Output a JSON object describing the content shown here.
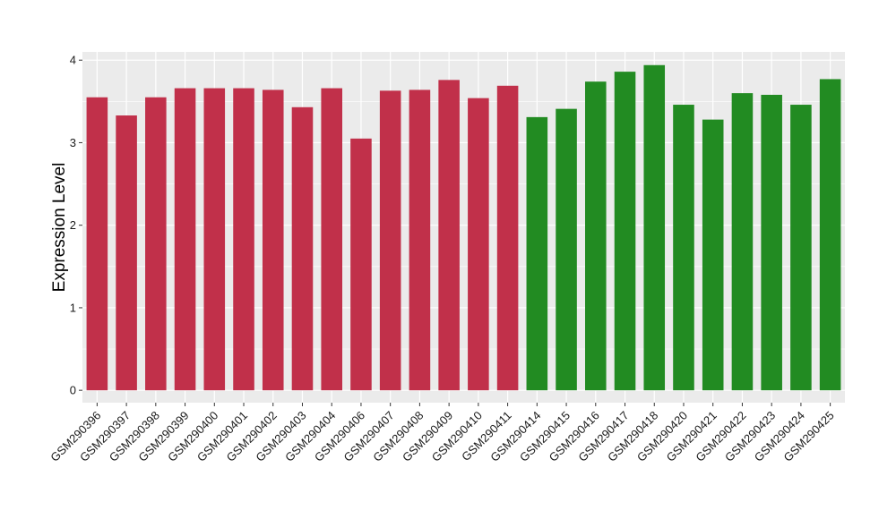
{
  "chart_data": {
    "type": "bar",
    "xlabel": "",
    "ylabel": "Expression Level",
    "ylim": [
      -0.15,
      4.1
    ],
    "yticks": [
      0,
      1,
      2,
      3,
      4
    ],
    "grid": true,
    "legend": "none",
    "colors": {
      "group1": "#C1304A",
      "group2": "#228B22",
      "panel": "#EBEBEB",
      "grid": "#FFFFFF"
    },
    "categories": [
      "GSM290396",
      "GSM290397",
      "GSM290398",
      "GSM290399",
      "GSM290400",
      "GSM290401",
      "GSM290402",
      "GSM290403",
      "GSM290404",
      "GSM290406",
      "GSM290407",
      "GSM290408",
      "GSM290409",
      "GSM290410",
      "GSM290411",
      "GSM290414",
      "GSM290415",
      "GSM290416",
      "GSM290417",
      "GSM290418",
      "GSM290420",
      "GSM290421",
      "GSM290422",
      "GSM290423",
      "GSM290424",
      "GSM290425"
    ],
    "values": [
      3.55,
      3.33,
      3.55,
      3.66,
      3.66,
      3.66,
      3.64,
      3.43,
      3.66,
      3.05,
      3.63,
      3.64,
      3.76,
      3.54,
      3.69,
      3.31,
      3.41,
      3.74,
      3.86,
      3.94,
      3.46,
      3.28,
      3.6,
      3.58,
      3.46,
      3.77
    ],
    "groups": [
      1,
      1,
      1,
      1,
      1,
      1,
      1,
      1,
      1,
      1,
      1,
      1,
      1,
      1,
      1,
      2,
      2,
      2,
      2,
      2,
      2,
      2,
      2,
      2,
      2,
      2
    ]
  }
}
